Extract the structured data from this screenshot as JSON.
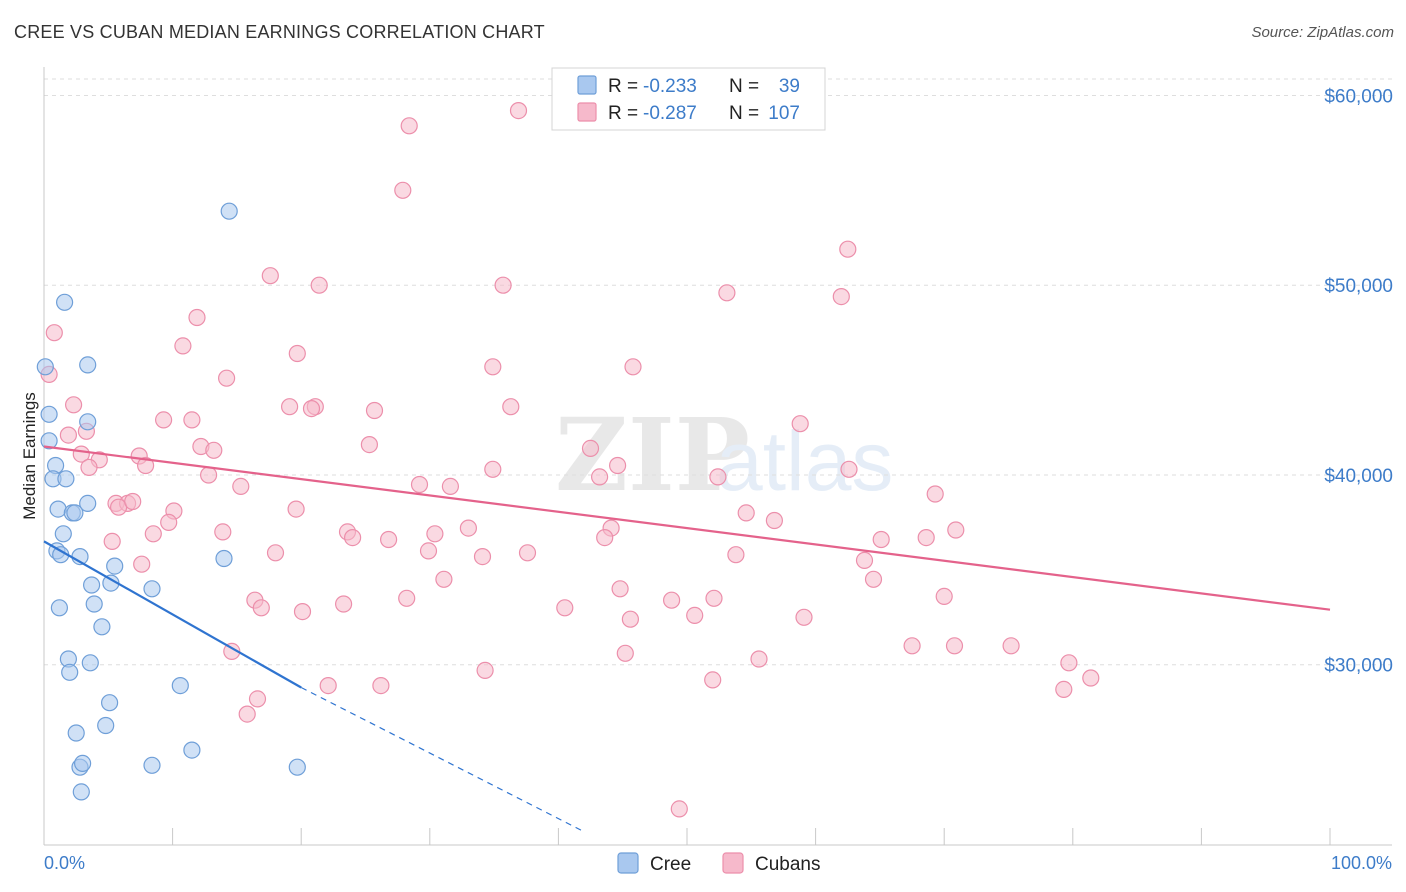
{
  "header": {
    "title": "CREE VS CUBAN MEDIAN EARNINGS CORRELATION CHART",
    "source": "Source: ZipAtlas.com"
  },
  "watermark": {
    "zip": "ZIP",
    "atlas": "atlas"
  },
  "legend": {
    "rows": [
      {
        "r_label": "R =",
        "r_value": "-0.233",
        "n_label": "N =",
        "n_value": "39"
      },
      {
        "r_label": "R =",
        "r_value": "-0.287",
        "n_label": "N =",
        "n_value": "107"
      }
    ]
  },
  "bottom_legend": {
    "items": [
      "Cree",
      "Cubans"
    ]
  },
  "colors": {
    "cree_fill": "#a9c8ef",
    "cree_stroke": "#6f9fd8",
    "cree_line": "#2f74d0",
    "cubans_fill": "#f6b9cb",
    "cubans_stroke": "#ec8fab",
    "cubans_line": "#e4628b",
    "grid": "#dedede",
    "axis_label": "#3d7cc9"
  },
  "chart_data": {
    "type": "scatter",
    "title": "CREE VS CUBAN MEDIAN EARNINGS CORRELATION CHART",
    "xlabel": "",
    "ylabel": "Median Earnings",
    "xlim": [
      0,
      100
    ],
    "ylim": [
      20500,
      61500
    ],
    "x_tick_labels": [
      "0.0%",
      "100.0%"
    ],
    "y_ticks": [
      30000,
      40000,
      50000,
      60000
    ],
    "y_tick_labels": [
      "$30,000",
      "$40,000",
      "$50,000",
      "$60,000"
    ],
    "grid": true,
    "legend_position": "top-center",
    "series": [
      {
        "name": "Cree",
        "r": -0.233,
        "n": 39,
        "trend": {
          "x": [
            0,
            20
          ],
          "y": [
            36500,
            28800
          ],
          "dashed_to": [
            42,
            21200
          ]
        },
        "points": [
          [
            0.1,
            45700
          ],
          [
            1.6,
            49100
          ],
          [
            3.4,
            45800
          ],
          [
            0.4,
            43200
          ],
          [
            3.4,
            42800
          ],
          [
            0.4,
            41800
          ],
          [
            0.9,
            40500
          ],
          [
            0.7,
            39800
          ],
          [
            1.7,
            39800
          ],
          [
            3.4,
            38500
          ],
          [
            1.1,
            38200
          ],
          [
            2.2,
            38000
          ],
          [
            2.4,
            38000
          ],
          [
            1.5,
            36900
          ],
          [
            1.0,
            36000
          ],
          [
            1.3,
            35800
          ],
          [
            2.8,
            35700
          ],
          [
            5.5,
            35200
          ],
          [
            14.0,
            35600
          ],
          [
            3.7,
            34200
          ],
          [
            5.2,
            34300
          ],
          [
            8.4,
            34000
          ],
          [
            3.9,
            33200
          ],
          [
            1.2,
            33000
          ],
          [
            4.5,
            32000
          ],
          [
            1.9,
            30300
          ],
          [
            3.6,
            30100
          ],
          [
            2.0,
            29600
          ],
          [
            10.6,
            28900
          ],
          [
            5.1,
            28000
          ],
          [
            2.5,
            26400
          ],
          [
            4.8,
            26800
          ],
          [
            11.5,
            25500
          ],
          [
            2.8,
            24600
          ],
          [
            3.0,
            24800
          ],
          [
            8.4,
            24700
          ],
          [
            19.7,
            24600
          ],
          [
            2.9,
            23300
          ],
          [
            14.4,
            53900
          ]
        ]
      },
      {
        "name": "Cubans",
        "r": -0.287,
        "n": 107,
        "trend": {
          "x": [
            0,
            100
          ],
          "y": [
            41500,
            32900
          ]
        },
        "points": [
          [
            36.9,
            59200
          ],
          [
            28.4,
            58400
          ],
          [
            27.9,
            55000
          ],
          [
            62.5,
            51900
          ],
          [
            17.6,
            50500
          ],
          [
            21.4,
            50000
          ],
          [
            35.7,
            50000
          ],
          [
            53.1,
            49600
          ],
          [
            62.0,
            49400
          ],
          [
            11.9,
            48300
          ],
          [
            0.8,
            47500
          ],
          [
            10.8,
            46800
          ],
          [
            19.7,
            46400
          ],
          [
            34.9,
            45700
          ],
          [
            45.8,
            45700
          ],
          [
            0.4,
            45300
          ],
          [
            14.2,
            45100
          ],
          [
            2.3,
            43700
          ],
          [
            19.1,
            43600
          ],
          [
            21.1,
            43600
          ],
          [
            20.8,
            43500
          ],
          [
            25.7,
            43400
          ],
          [
            36.3,
            43600
          ],
          [
            9.3,
            42900
          ],
          [
            11.5,
            42900
          ],
          [
            3.3,
            42300
          ],
          [
            1.9,
            42100
          ],
          [
            58.8,
            42700
          ],
          [
            12.2,
            41500
          ],
          [
            25.3,
            41600
          ],
          [
            42.5,
            41400
          ],
          [
            13.2,
            41300
          ],
          [
            2.9,
            41100
          ],
          [
            7.4,
            41000
          ],
          [
            4.3,
            40800
          ],
          [
            3.5,
            40400
          ],
          [
            7.9,
            40500
          ],
          [
            44.6,
            40500
          ],
          [
            34.9,
            40300
          ],
          [
            62.6,
            40300
          ],
          [
            12.8,
            40000
          ],
          [
            43.2,
            39900
          ],
          [
            52.4,
            39900
          ],
          [
            29.2,
            39500
          ],
          [
            31.6,
            39400
          ],
          [
            15.3,
            39400
          ],
          [
            69.3,
            39000
          ],
          [
            5.6,
            38500
          ],
          [
            6.5,
            38500
          ],
          [
            5.8,
            38300
          ],
          [
            10.1,
            38100
          ],
          [
            19.6,
            38200
          ],
          [
            54.6,
            38000
          ],
          [
            6.9,
            38600
          ],
          [
            56.8,
            37600
          ],
          [
            9.7,
            37500
          ],
          [
            13.9,
            37000
          ],
          [
            23.6,
            37000
          ],
          [
            30.4,
            36900
          ],
          [
            33.0,
            37200
          ],
          [
            44.1,
            37200
          ],
          [
            70.9,
            37100
          ],
          [
            8.5,
            36900
          ],
          [
            5.3,
            36500
          ],
          [
            24.0,
            36700
          ],
          [
            26.8,
            36600
          ],
          [
            43.6,
            36700
          ],
          [
            65.1,
            36600
          ],
          [
            68.6,
            36700
          ],
          [
            29.9,
            36000
          ],
          [
            37.6,
            35900
          ],
          [
            18.0,
            35900
          ],
          [
            53.8,
            35800
          ],
          [
            34.1,
            35700
          ],
          [
            7.6,
            35300
          ],
          [
            63.8,
            35500
          ],
          [
            31.1,
            34500
          ],
          [
            64.5,
            34500
          ],
          [
            44.8,
            34000
          ],
          [
            16.4,
            33400
          ],
          [
            28.2,
            33500
          ],
          [
            52.1,
            33500
          ],
          [
            48.8,
            33400
          ],
          [
            70.0,
            33600
          ],
          [
            23.3,
            33200
          ],
          [
            16.9,
            33000
          ],
          [
            20.1,
            32800
          ],
          [
            40.5,
            33000
          ],
          [
            50.6,
            32600
          ],
          [
            59.1,
            32500
          ],
          [
            45.6,
            32400
          ],
          [
            67.5,
            31000
          ],
          [
            70.8,
            31000
          ],
          [
            75.2,
            31000
          ],
          [
            14.6,
            30700
          ],
          [
            45.2,
            30600
          ],
          [
            55.6,
            30300
          ],
          [
            79.7,
            30100
          ],
          [
            34.3,
            29700
          ],
          [
            52.0,
            29200
          ],
          [
            81.4,
            29300
          ],
          [
            22.1,
            28900
          ],
          [
            26.2,
            28900
          ],
          [
            79.3,
            28700
          ],
          [
            16.6,
            28200
          ],
          [
            15.8,
            27400
          ],
          [
            49.4,
            22400
          ]
        ]
      }
    ]
  }
}
